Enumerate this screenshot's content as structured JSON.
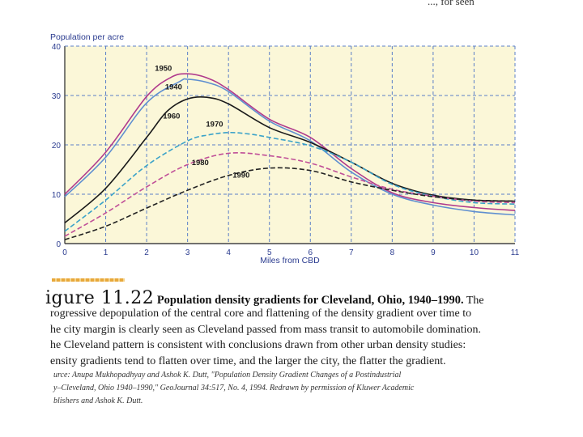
{
  "header": {
    "fragment": "..., for seen"
  },
  "chart_data": {
    "type": "line",
    "title": "",
    "ylabel": "Population per acre",
    "xlabel": "Miles from CBD",
    "xlim": [
      0,
      11
    ],
    "ylim": [
      0,
      40
    ],
    "x_ticks": [
      "0",
      "1",
      "2",
      "3",
      "4",
      "5",
      "6",
      "7",
      "8",
      "9",
      "10",
      "11"
    ],
    "y_ticks": [
      "0",
      "10",
      "20",
      "30",
      "40"
    ],
    "grid": "dashed blue gridlines at every mile and every 10 persons",
    "colors": {
      "background": "#fbf7d8",
      "grid": "#5b7fc7",
      "axis": "#444444",
      "tick_text": "#2a3b8f"
    },
    "series": [
      {
        "name": "1950",
        "color": "#b03a8c",
        "style": "solid",
        "x": [
          0,
          1,
          2,
          2.6,
          3,
          3.5,
          4,
          5,
          6,
          7,
          8,
          9,
          10,
          11
        ],
        "y": [
          10,
          18.5,
          29.8,
          33.7,
          34.4,
          33.5,
          31.2,
          25.2,
          21.5,
          15.2,
          10.3,
          8.3,
          7.3,
          6.7
        ]
      },
      {
        "name": "1940",
        "color": "#5f8fd0",
        "style": "solid",
        "x": [
          0,
          1,
          2,
          2.8,
          3,
          3.5,
          4,
          5,
          6,
          7,
          8,
          9,
          10,
          11
        ],
        "y": [
          9.5,
          17.5,
          28.5,
          32.8,
          33.3,
          32.6,
          30.8,
          24.8,
          20.8,
          14.5,
          10.0,
          7.8,
          6.5,
          5.8
        ]
      },
      {
        "name": "1960",
        "color": "#1a1a1a",
        "style": "solid",
        "x": [
          0,
          1,
          2,
          2.5,
          3,
          3.5,
          4,
          5,
          6,
          7,
          8,
          9,
          10,
          11
        ],
        "y": [
          4.2,
          11.2,
          21.5,
          26.8,
          29.3,
          29.6,
          28.3,
          23.5,
          20.5,
          16.5,
          12.2,
          9.8,
          8.8,
          8.6
        ]
      },
      {
        "name": "1970",
        "color": "#3aa2c9",
        "style": "dashed",
        "x": [
          0,
          1,
          2,
          3,
          3.5,
          4,
          4.5,
          5,
          6,
          7,
          8,
          9,
          10,
          11
        ],
        "y": [
          2.5,
          8.8,
          15.8,
          20.8,
          22.0,
          22.5,
          22.2,
          21.5,
          19.8,
          16.5,
          12.0,
          9.6,
          8.3,
          8.0
        ]
      },
      {
        "name": "1980",
        "color": "#c04f98",
        "style": "dashed",
        "x": [
          0,
          1,
          2,
          3,
          4,
          5,
          6,
          7,
          8,
          9,
          10,
          11
        ],
        "y": [
          1.5,
          6.2,
          11.5,
          16.0,
          18.3,
          17.8,
          16.3,
          13.5,
          11.0,
          9.6,
          8.6,
          8.3
        ]
      },
      {
        "name": "1990",
        "color": "#222222",
        "style": "dashed",
        "x": [
          0,
          1,
          2,
          3,
          4,
          5,
          6,
          7,
          8,
          9,
          10,
          11
        ],
        "y": [
          0.8,
          3.5,
          7.2,
          10.8,
          13.8,
          15.3,
          14.8,
          12.5,
          10.8,
          9.5,
          8.8,
          8.6
        ]
      }
    ],
    "annotations": [
      {
        "text": "1950",
        "x": 2.2,
        "y": 35.0
      },
      {
        "text": "1940",
        "x": 2.45,
        "y": 31.2
      },
      {
        "text": "1960",
        "x": 2.4,
        "y": 25.3
      },
      {
        "text": "1970",
        "x": 3.45,
        "y": 23.7
      },
      {
        "text": "1980",
        "x": 3.1,
        "y": 15.9
      },
      {
        "text": "1990",
        "x": 4.1,
        "y": 13.4
      }
    ]
  },
  "caption": {
    "figure_label": "igure 11.22",
    "title": "Population density gradients for Cleveland, Ohio, 1940–1990.",
    "title_tail": "The",
    "lines": [
      "rogressive depopulation of the central core and flattening of the density gradient over time to",
      "he city margin is clearly seen as Cleveland passed from mass transit to automobile domination.",
      "he Cleveland pattern is consistent with conclusions drawn from other urban density studies:",
      "ensity gradients tend to flatten over time, and the larger the city, the flatter the gradient."
    ],
    "source_lines": [
      "urce: Anupa Mukhopadhyay and Ashok K. Dutt, \"Population Density Gradient Changes of a Postindustrial",
      "y–Cleveland, Ohio 1940–1990,\" GeoJournal 34:517, No. 4, 1994. Redrawn by permission of Kluwer Academic",
      "blishers and Ashok K. Dutt."
    ]
  }
}
